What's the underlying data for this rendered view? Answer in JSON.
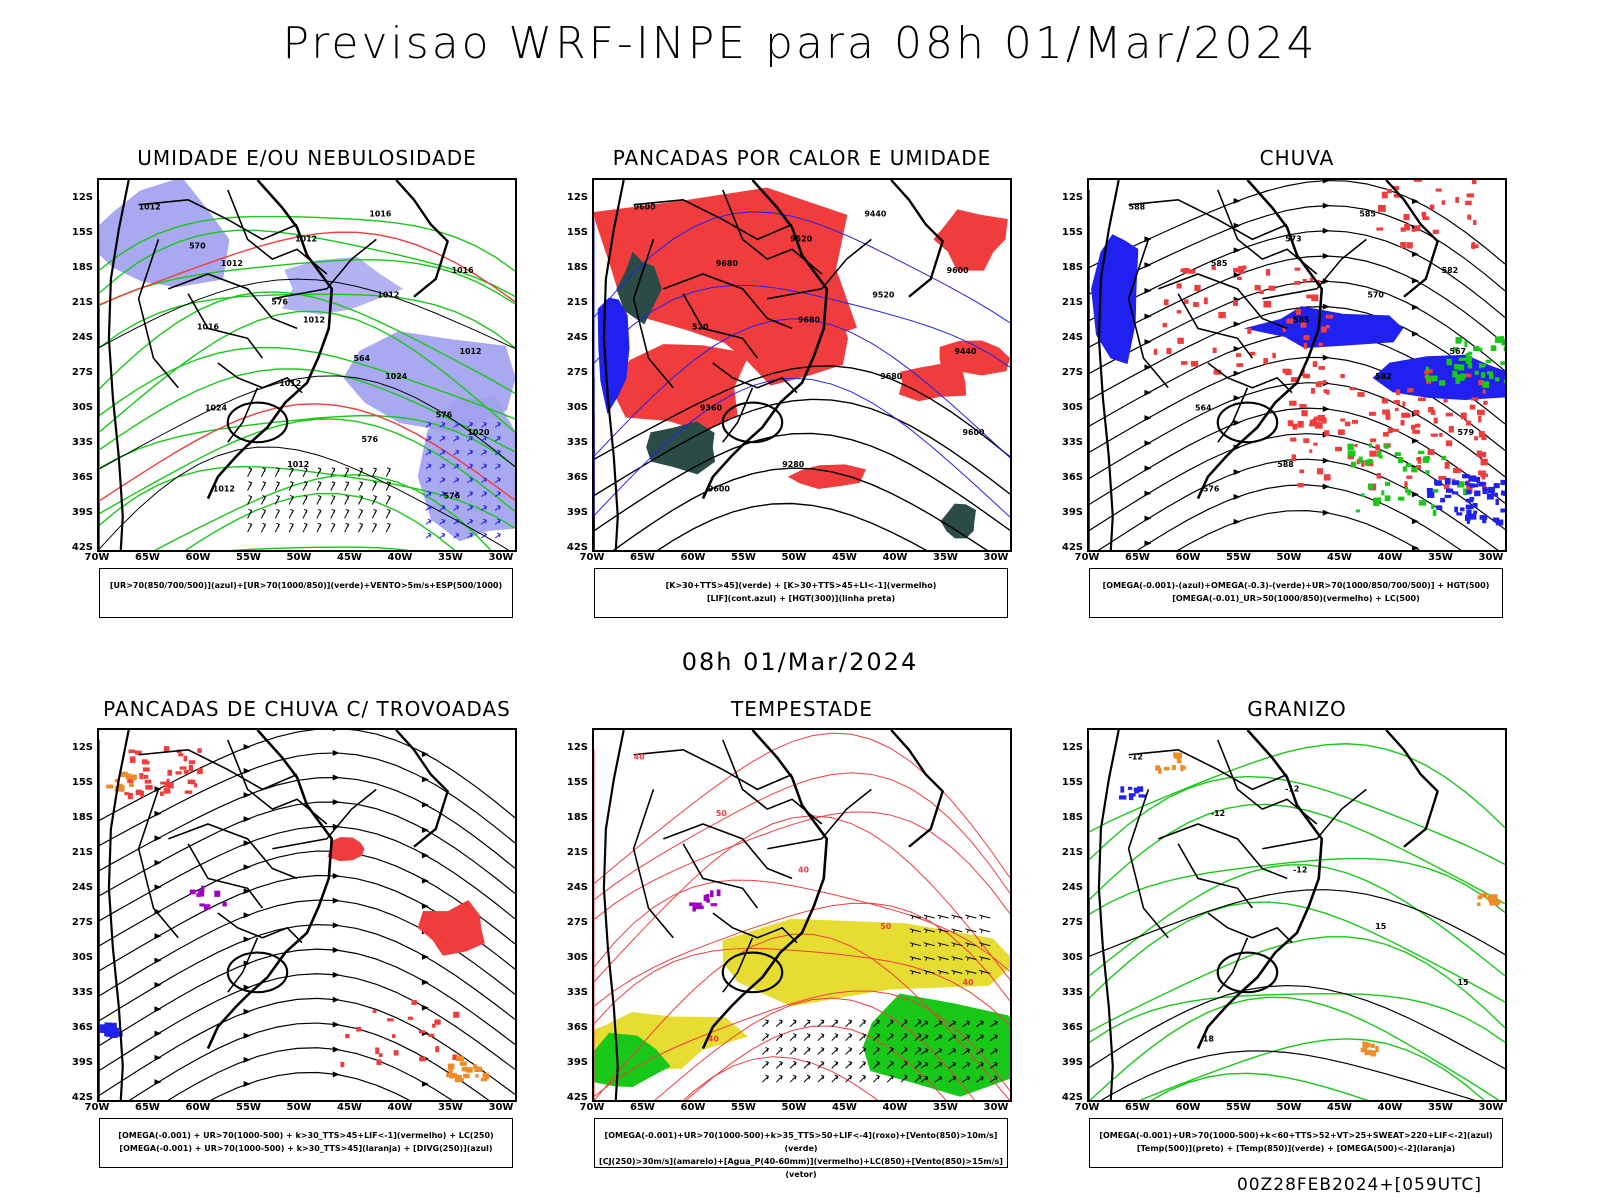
{
  "header": {
    "title": "Previsao WRF-INPE  para 08h 01/Mar/2024",
    "mid_title": "08h 01/Mar/2024",
    "run_info": "00Z28FEB2024+[059UTC]"
  },
  "axes": {
    "lat_labels": [
      "12S",
      "15S",
      "18S",
      "21S",
      "24S",
      "27S",
      "30S",
      "33S",
      "36S",
      "39S",
      "42S"
    ],
    "lon_labels": [
      "70W",
      "65W",
      "60W",
      "55W",
      "50W",
      "45W",
      "40W",
      "35W",
      "30W"
    ]
  },
  "panels": [
    {
      "id": "umidade",
      "title": "UMIDADE E/OU NEBULOSIDADE",
      "legend_lines": [
        "[UR>70(850/700/500)](azul)+[UR>70(1000/850)](verde)+VENTO>5m/s+ESP(500/1000)"
      ],
      "contour_labels": [
        "1012",
        "1012",
        "1012",
        "1024",
        "1020",
        "1012",
        "1012",
        "1012",
        "1012",
        "1024",
        "1012",
        "1016",
        "1016",
        "1016",
        "1012",
        "576",
        "576",
        "570",
        "576",
        "564",
        "576"
      ]
    },
    {
      "id": "pancadas-calor",
      "title": "PANCADAS POR CALOR E UMIDADE",
      "legend_lines": [
        "[K>30+TTS>45](verde) + [K>30+TTS>45+LI<-1](vermelho)",
        "[LIF](cont.azul) + [HGT(300)](linha preta)"
      ],
      "contour_labels": [
        "9600",
        "9680",
        "9680",
        "9680",
        "9600",
        "9600",
        "9520",
        "9520",
        "9440",
        "9360",
        "9280",
        "9440",
        "9600",
        "520"
      ]
    },
    {
      "id": "chuva",
      "title": "CHUVA",
      "legend_lines": [
        "[OMEGA(-0.001)-(azul)+OMEGA(-0.3)-(verde)+UR>70(1000/850/700/500)] + HGT(500)",
        "[OMEGA(-0.01)_UR>50(1000/850)(vermelho) + LC(500)"
      ],
      "contour_labels": [
        "588",
        "585",
        "585",
        "582",
        "579",
        "576",
        "573",
        "570",
        "567",
        "564",
        "588",
        "585",
        "582"
      ]
    },
    {
      "id": "pancadas-trovoadas",
      "title": "PANCADAS DE CHUVA C/ TROVOADAS",
      "legend_lines": [
        "[OMEGA(-0.001) + UR>70(1000-500) + k>30_TTS>45+LIF<-1](vermelho) + LC(250)",
        "[OMEGA(-0.001) + UR>70(1000-500) + k>30_TTS>45](laranja) + [DIVG(250)](azul)"
      ],
      "contour_labels": []
    },
    {
      "id": "tempestade",
      "title": "TEMPESTADE",
      "legend_lines": [
        "[OMEGA(-0.001)+UR>70(1000-500)+k>35_TTS>50+LIF<-4](roxo)+[Vento(850)>10m/s](verde)",
        "[CJ(250)>30m/s](amarelo)+[Agua_P(40-60mm)](vermelho)+LC(850)+[Vento(850)>15m/s](vetor)"
      ],
      "contour_labels": [
        "40",
        "50",
        "40",
        "50",
        "40",
        "40"
      ]
    },
    {
      "id": "granizo",
      "title": "GRANIZO",
      "legend_lines": [
        "[OMEGA(-0.001)+UR>70(1000-500)+k<60+TTS>52+VT>25+SWEAT>220+LIF<-2](azul)",
        "[Temp(500)](preto) + [Temp(850)](verde) + [OMEGA(500)<-2](laranja)"
      ],
      "contour_labels": [
        "-12",
        "-12",
        "-12",
        "15",
        "15",
        "18",
        "-12"
      ]
    }
  ],
  "colors": {
    "red": "#f03c3c",
    "green": "#18c818",
    "blue": "#2020f0",
    "lightblue": "#a0a0f0",
    "darkteal": "#2a4b46",
    "yellow": "#e6dc32",
    "orange": "#f08c28",
    "purple": "#a000c8"
  }
}
